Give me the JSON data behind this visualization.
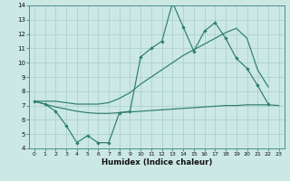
{
  "xlabel": "Humidex (Indice chaleur)",
  "color": "#2d7d6e",
  "bg_color": "#cbe8e5",
  "grid_color": "#a8ccca",
  "ylim": [
    4,
    14
  ],
  "xlim": [
    -0.5,
    23.5
  ],
  "yticks": [
    4,
    5,
    6,
    7,
    8,
    9,
    10,
    11,
    12,
    13,
    14
  ],
  "xticks": [
    0,
    1,
    2,
    3,
    4,
    5,
    6,
    7,
    8,
    9,
    10,
    11,
    12,
    13,
    14,
    15,
    16,
    17,
    18,
    19,
    20,
    21,
    22,
    23
  ],
  "zigzag_x": [
    0,
    1,
    2,
    3,
    4,
    5,
    6,
    7,
    8,
    9,
    10,
    11,
    12,
    13,
    14,
    15,
    16,
    17,
    18,
    19,
    20,
    21,
    22
  ],
  "zigzag_y": [
    7.3,
    7.1,
    6.6,
    5.6,
    4.4,
    4.9,
    4.4,
    4.4,
    6.5,
    6.6,
    10.4,
    11.0,
    11.5,
    14.2,
    12.5,
    10.8,
    12.2,
    12.8,
    11.7,
    10.3,
    9.6,
    8.4,
    7.1
  ],
  "upper_x": [
    0,
    1,
    2,
    3,
    4,
    5,
    6,
    7,
    8,
    9,
    10,
    11,
    12,
    13,
    14,
    15,
    16,
    17,
    18,
    19,
    20,
    21,
    22
  ],
  "upper_y": [
    7.3,
    7.3,
    7.3,
    7.2,
    7.1,
    7.1,
    7.1,
    7.2,
    7.5,
    7.9,
    8.5,
    9.0,
    9.5,
    10.0,
    10.5,
    10.9,
    11.3,
    11.7,
    12.1,
    12.4,
    11.7,
    9.5,
    8.3
  ],
  "lower_x": [
    0,
    1,
    2,
    3,
    4,
    5,
    6,
    7,
    8,
    9,
    10,
    11,
    12,
    13,
    14,
    15,
    16,
    17,
    18,
    19,
    20,
    21,
    22,
    23
  ],
  "lower_y": [
    7.3,
    7.1,
    6.9,
    6.75,
    6.6,
    6.5,
    6.45,
    6.45,
    6.5,
    6.55,
    6.6,
    6.65,
    6.7,
    6.75,
    6.8,
    6.85,
    6.9,
    6.95,
    7.0,
    7.0,
    7.05,
    7.05,
    7.05,
    7.0
  ]
}
